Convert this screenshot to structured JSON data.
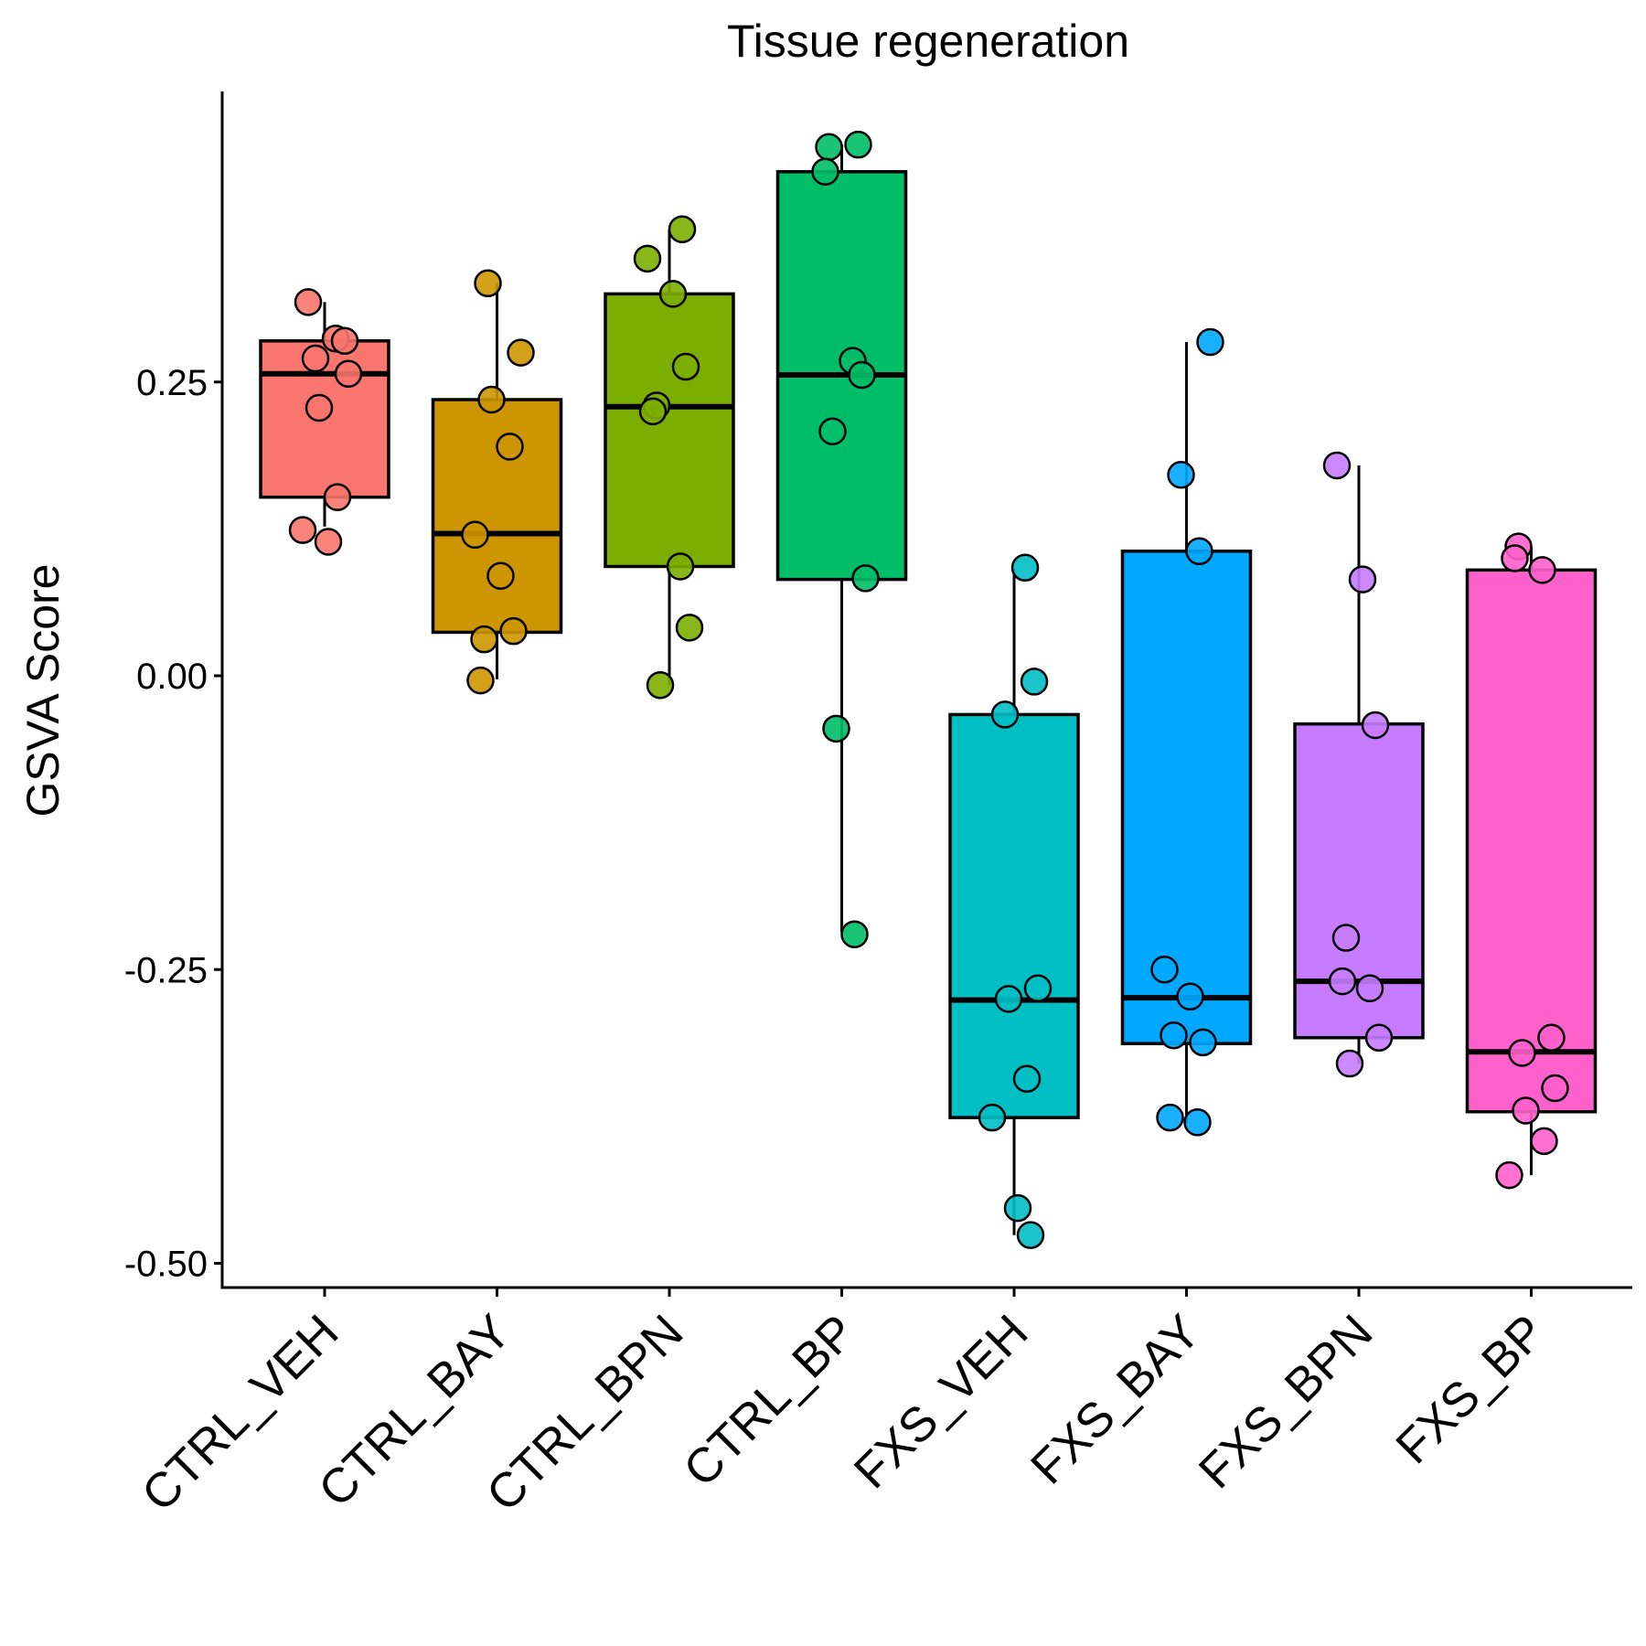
{
  "chart_data": {
    "type": "box",
    "title": "Tissue regeneration",
    "xlabel": "",
    "ylabel": "GSVA Score",
    "ylim": [
      -0.52,
      0.495
    ],
    "yticks": [
      0.25,
      0.0,
      -0.25,
      -0.5
    ],
    "ytick_labels": [
      "0.25",
      "0.00",
      "-0.25",
      "-0.50"
    ],
    "grid": false,
    "legend": "none",
    "groups": [
      {
        "name": "CTRL_VEH",
        "color": "#F8766D",
        "q1": 0.152,
        "median": 0.257,
        "q3": 0.285,
        "whisker_low": 0.127,
        "whisker_high": 0.318,
        "points": [
          0.318,
          0.287,
          0.285,
          0.27,
          0.257,
          0.228,
          0.152,
          0.124,
          0.114
        ]
      },
      {
        "name": "CTRL_BAY",
        "color": "#CD9600",
        "q1": 0.037,
        "median": 0.121,
        "q3": 0.235,
        "whisker_low": -0.003,
        "whisker_high": 0.334,
        "points": [
          0.334,
          0.275,
          0.235,
          0.195,
          0.12,
          0.085,
          0.038,
          0.031,
          -0.004
        ]
      },
      {
        "name": "CTRL_BPN",
        "color": "#7CAE00",
        "q1": 0.093,
        "median": 0.229,
        "q3": 0.325,
        "whisker_low": -0.008,
        "whisker_high": 0.38,
        "points": [
          0.38,
          0.355,
          0.325,
          0.263,
          0.23,
          0.225,
          0.093,
          0.041,
          -0.008
        ]
      },
      {
        "name": "CTRL_BP",
        "color": "#00BE67",
        "q1": 0.082,
        "median": 0.256,
        "q3": 0.429,
        "whisker_low": -0.218,
        "whisker_high": 0.452,
        "points": [
          0.452,
          0.45,
          0.429,
          0.268,
          0.256,
          0.208,
          0.083,
          -0.045,
          -0.22
        ]
      },
      {
        "name": "FXS_VEH",
        "color": "#00BFC4",
        "q1": -0.376,
        "median": -0.276,
        "q3": -0.033,
        "whisker_low": -0.476,
        "whisker_high": 0.091,
        "points": [
          0.092,
          -0.005,
          -0.033,
          -0.266,
          -0.275,
          -0.343,
          -0.376,
          -0.453,
          -0.476
        ]
      },
      {
        "name": "FXS_BAY",
        "color": "#00A9FF",
        "q1": -0.313,
        "median": -0.274,
        "q3": 0.106,
        "whisker_low": -0.381,
        "whisker_high": 0.284,
        "points": [
          0.284,
          0.171,
          0.106,
          -0.25,
          -0.273,
          -0.312,
          -0.306,
          -0.376,
          -0.38
        ]
      },
      {
        "name": "FXS_BPN",
        "color": "#C77CFF",
        "q1": -0.308,
        "median": -0.26,
        "q3": -0.041,
        "whisker_low": -0.33,
        "whisker_high": 0.179,
        "points": [
          0.179,
          0.082,
          -0.042,
          -0.223,
          -0.26,
          -0.266,
          -0.308,
          -0.33
        ]
      },
      {
        "name": "FXS_BP",
        "color": "#FF61CC",
        "q1": -0.371,
        "median": -0.32,
        "q3": 0.09,
        "whisker_low": -0.425,
        "whisker_high": 0.11,
        "points": [
          0.11,
          0.1,
          0.09,
          -0.308,
          -0.321,
          -0.351,
          -0.37,
          -0.396,
          -0.425
        ]
      }
    ]
  }
}
